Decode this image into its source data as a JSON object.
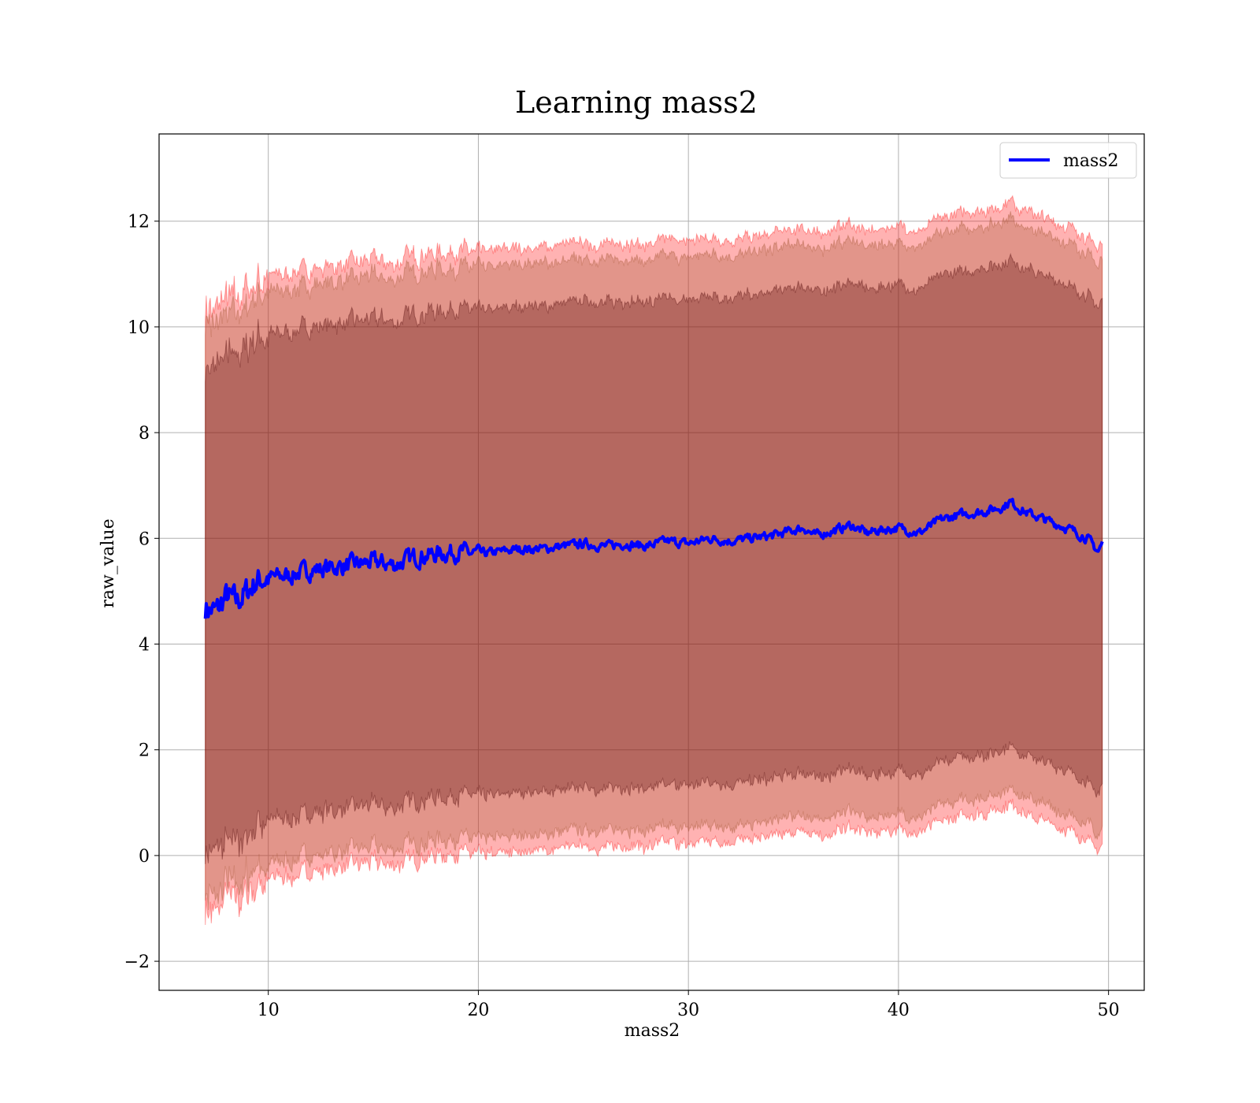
{
  "chart_data": {
    "type": "area",
    "title": "Learning mass2",
    "xlabel": "mass2",
    "ylabel": "raw_value",
    "xlim": [
      4.8,
      51.7
    ],
    "ylim": [
      -2.55,
      13.65
    ],
    "xticks": [
      10,
      20,
      30,
      40,
      50
    ],
    "yticks": [
      -2,
      0,
      2,
      4,
      6,
      8,
      10,
      12
    ],
    "xtick_labels": [
      "10",
      "20",
      "30",
      "40",
      "50"
    ],
    "ytick_labels": [
      "−2",
      "0",
      "2",
      "4",
      "6",
      "8",
      "10",
      "12"
    ],
    "grid": true,
    "legend": {
      "placement": "top-right",
      "entries": [
        "mass2"
      ]
    },
    "colors": {
      "line": "#0000ff",
      "band_outer": "#ff0000",
      "band_middle": "#a0522d",
      "band_inner": "#4b0000"
    },
    "series": [
      {
        "name": "mass2",
        "x": [
          7.0,
          7.5,
          8.0,
          8.5,
          9.0,
          9.5,
          10.0,
          11.0,
          12.0,
          13.0,
          14.0,
          15.0,
          16.0,
          17.0,
          18.0,
          19.0,
          20.0,
          21.0,
          22.0,
          23.0,
          24.0,
          25.0,
          26.0,
          27.0,
          28.0,
          29.0,
          30.0,
          31.0,
          32.0,
          33.0,
          34.0,
          35.0,
          35.5,
          36.0,
          37.0,
          37.7,
          38.5,
          39.0,
          40.0,
          41.0,
          42.0,
          43.0,
          44.0,
          45.0,
          45.3,
          46.0,
          47.0,
          48.0,
          49.0,
          49.5,
          49.7
        ],
        "y": [
          4.7,
          4.6,
          4.9,
          4.8,
          5.0,
          5.2,
          5.25,
          5.3,
          5.4,
          5.45,
          5.5,
          5.55,
          5.5,
          5.65,
          5.7,
          5.75,
          5.7,
          5.75,
          5.8,
          5.8,
          5.85,
          5.9,
          5.85,
          5.9,
          5.85,
          5.95,
          5.9,
          6.0,
          5.95,
          6.0,
          6.05,
          6.15,
          6.2,
          6.05,
          6.15,
          6.25,
          6.1,
          6.15,
          6.2,
          6.1,
          6.35,
          6.45,
          6.5,
          6.6,
          6.7,
          6.5,
          6.35,
          6.2,
          6.0,
          5.75,
          5.9
        ]
      }
    ],
    "bands": [
      {
        "level": "outer",
        "half_width": 5.7
      },
      {
        "level": "middle",
        "half_width": 5.4
      },
      {
        "level": "inner",
        "half_width": 4.6
      }
    ]
  }
}
